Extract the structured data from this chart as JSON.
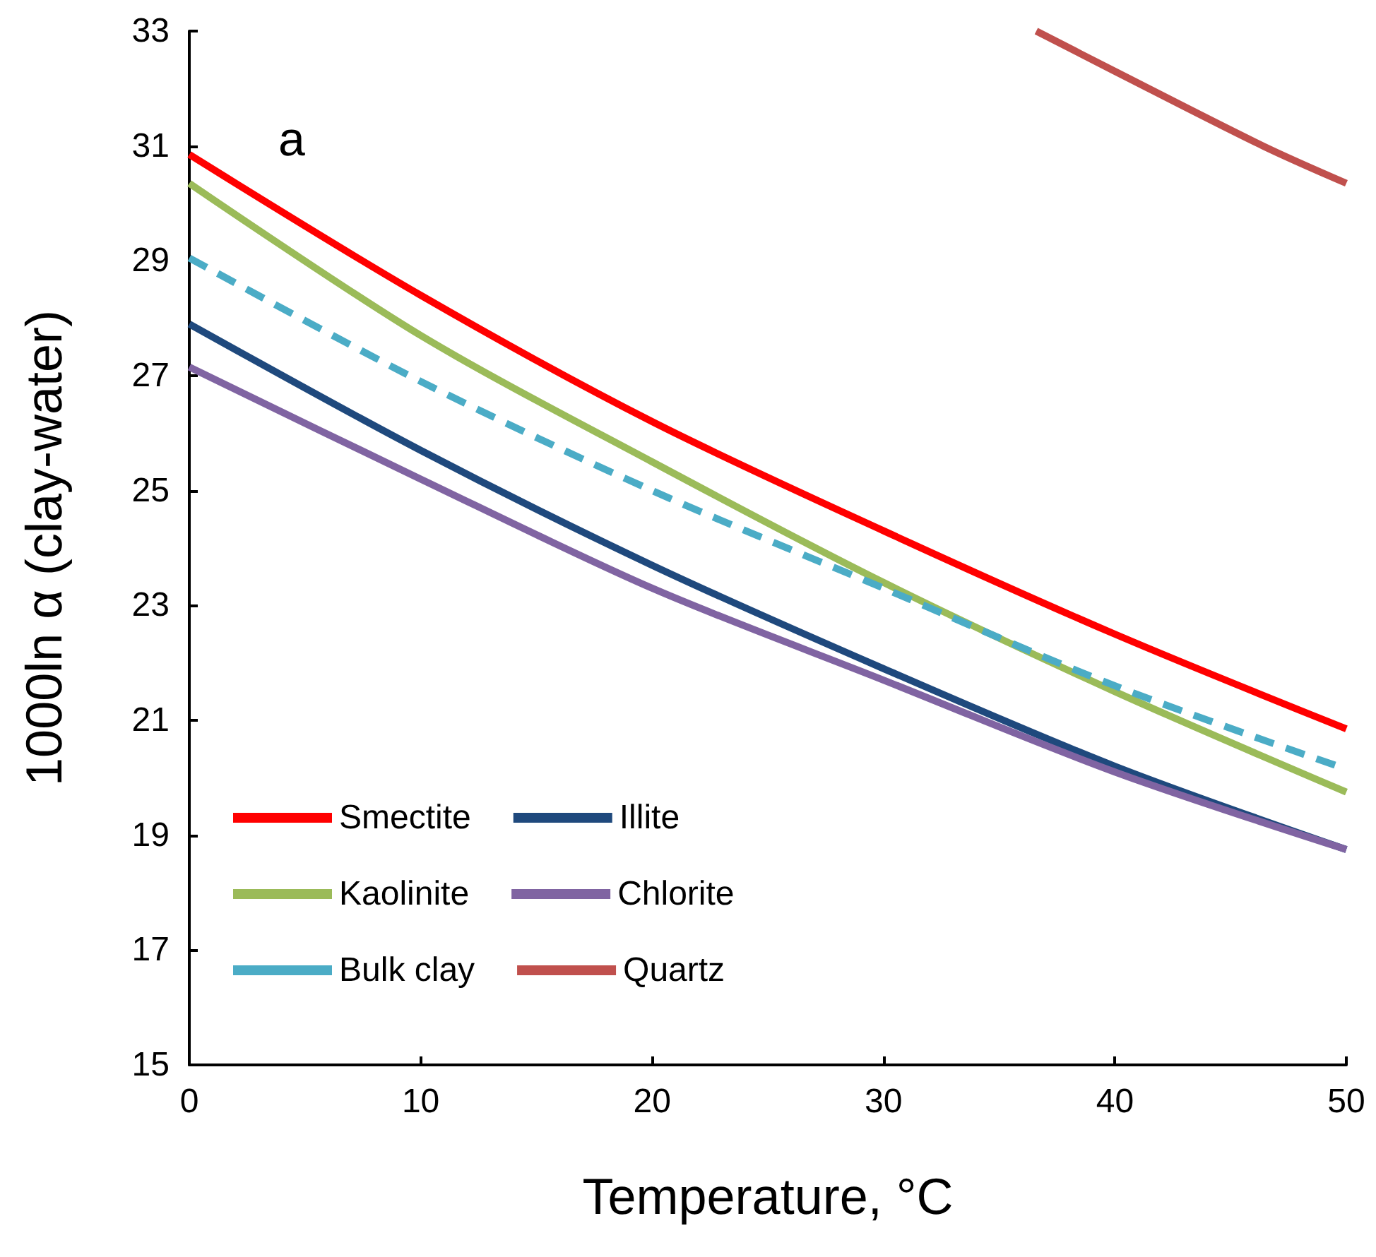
{
  "chart_data": {
    "type": "line",
    "xlabel": "Temperature, °C",
    "ylabel": "1000ln α (clay-water)",
    "annotations": [
      "a"
    ],
    "xlim": [
      0,
      50
    ],
    "xticks": [
      0,
      10,
      20,
      30,
      40,
      50
    ],
    "ylim": [
      15,
      33
    ],
    "yticks": [
      15,
      17,
      19,
      21,
      23,
      25,
      27,
      29,
      31,
      33
    ],
    "grid": false,
    "legend": "bottom left",
    "marker": "none",
    "x": [
      0,
      10,
      20,
      30,
      40,
      50
    ],
    "series": [
      {
        "name": "Smectite",
        "color": "#ff0000",
        "values": [
          30.85,
          28.4,
          26.2,
          24.3,
          22.5,
          20.85
        ]
      },
      {
        "name": "Illite",
        "color": "#1f497d",
        "values": [
          27.9,
          25.7,
          23.7,
          21.9,
          20.2,
          18.75
        ]
      },
      {
        "name": "Kaolinite",
        "color": "#9bbb59",
        "values": [
          30.35,
          27.7,
          25.5,
          23.4,
          21.5,
          19.75
        ]
      },
      {
        "name": "Chlorite",
        "color": "#8064a2",
        "values": [
          27.15,
          25.2,
          23.3,
          21.7,
          20.1,
          18.75
        ]
      },
      {
        "name": "Bulk clay",
        "color": "#4bacc6",
        "line_style": "dashed",
        "values": [
          29.05,
          26.9,
          25.0,
          23.3,
          21.6,
          20.15
        ]
      },
      {
        "name": "Quartz",
        "color": "#c0504d",
        "x": [
          36.6,
          40,
          46.4,
          50
        ],
        "values": [
          33,
          32.3,
          31.0,
          30.35
        ]
      }
    ]
  }
}
